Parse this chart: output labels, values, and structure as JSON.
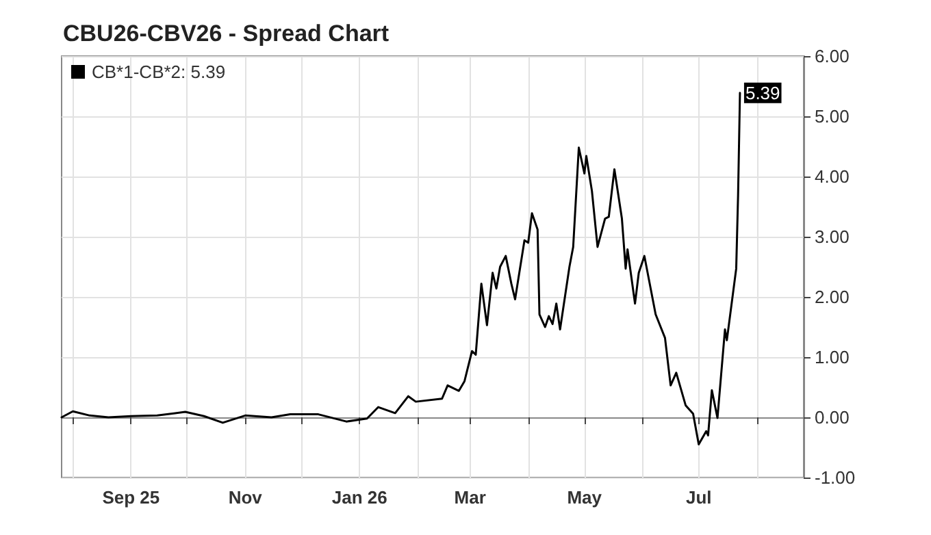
{
  "chart_data": {
    "type": "line",
    "title": "CBU26-CBV26 - Spread Chart",
    "x": [
      "2025-07-26",
      "2025-08-01",
      "2025-08-10",
      "2025-08-20",
      "2025-09-01",
      "2025-09-15",
      "2025-09-30",
      "2025-10-10",
      "2025-10-20",
      "2025-11-01",
      "2025-11-15",
      "2025-11-25",
      "2025-12-10",
      "2025-12-25",
      "2026-01-05",
      "2026-01-11",
      "2026-01-20",
      "2026-01-27",
      "2026-01-31",
      "2026-02-14",
      "2026-02-17",
      "2026-02-23",
      "2026-02-26",
      "2026-03-02",
      "2026-03-04",
      "2026-03-07",
      "2026-03-10",
      "2026-03-13",
      "2026-03-15",
      "2026-03-17",
      "2026-03-20",
      "2026-03-23",
      "2026-03-25",
      "2026-03-30",
      "2026-04-01",
      "2026-04-03",
      "2026-04-06",
      "2026-04-07",
      "2026-04-10",
      "2026-04-12",
      "2026-04-14",
      "2026-04-16",
      "2026-04-18",
      "2026-04-23",
      "2026-04-25",
      "2026-04-28",
      "2026-05-01",
      "2026-05-02",
      "2026-05-05",
      "2026-05-08",
      "2026-05-12",
      "2026-05-14",
      "2026-05-17",
      "2026-05-21",
      "2026-05-23",
      "2026-05-24",
      "2026-05-28",
      "2026-05-30",
      "2026-06-02",
      "2026-06-08",
      "2026-06-13",
      "2026-06-16",
      "2026-06-19",
      "2026-06-24",
      "2026-06-28",
      "2026-07-01",
      "2026-07-05",
      "2026-07-06",
      "2026-07-08",
      "2026-07-11",
      "2026-07-15",
      "2026-07-16",
      "2026-07-21",
      "2026-07-22",
      "2026-07-23"
    ],
    "series": [
      {
        "name": "CB*1-CB*2: 5.39",
        "color": "#000000",
        "values": [
          0.0,
          0.1,
          0.03,
          0.0,
          0.02,
          0.03,
          0.09,
          0.02,
          -0.09,
          0.03,
          0.0,
          0.05,
          0.05,
          -0.07,
          -0.02,
          0.17,
          0.07,
          0.35,
          0.26,
          0.31,
          0.53,
          0.44,
          0.6,
          1.1,
          1.04,
          2.22,
          1.53,
          2.4,
          2.14,
          2.5,
          2.68,
          2.22,
          1.96,
          2.94,
          2.9,
          3.39,
          3.12,
          1.71,
          1.5,
          1.68,
          1.55,
          1.89,
          1.46,
          2.5,
          2.83,
          4.48,
          4.05,
          4.34,
          3.76,
          2.83,
          3.3,
          3.33,
          4.12,
          3.3,
          2.47,
          2.79,
          1.89,
          2.4,
          2.68,
          1.71,
          1.32,
          0.53,
          0.74,
          0.2,
          0.06,
          -0.45,
          -0.23,
          -0.3,
          0.45,
          -0.01,
          1.46,
          1.28,
          2.47,
          3.69,
          5.39
        ],
        "value_labels": [
          null,
          null,
          null,
          null,
          null,
          null,
          null,
          null,
          null,
          null,
          null,
          null,
          null,
          null,
          null,
          null,
          null,
          null,
          null,
          null,
          null,
          null,
          null,
          null,
          null,
          null,
          null,
          null,
          null,
          null,
          null,
          null,
          null,
          null,
          null,
          null,
          null,
          null,
          null,
          null,
          null,
          null,
          null,
          null,
          null,
          null,
          null,
          null,
          null,
          null,
          null,
          null,
          null,
          null,
          null,
          null,
          null,
          null,
          null,
          null,
          null,
          null,
          null,
          null,
          null,
          null,
          null,
          null,
          null,
          null,
          null,
          null,
          null,
          null,
          "5.39"
        ]
      }
    ],
    "xlim": [
      "2025-07-26",
      "2026-08-26"
    ],
    "xticks": [
      {
        "value": "2025-08-01",
        "label": null
      },
      {
        "value": "2025-09-01",
        "label": "Sep 25"
      },
      {
        "value": "2025-10-01",
        "label": null
      },
      {
        "value": "2025-11-01",
        "label": "Nov"
      },
      {
        "value": "2025-12-01",
        "label": null
      },
      {
        "value": "2026-01-01",
        "label": "Jan 26"
      },
      {
        "value": "2026-02-01",
        "label": null
      },
      {
        "value": "2026-03-01",
        "label": "Mar"
      },
      {
        "value": "2026-04-01",
        "label": null
      },
      {
        "value": "2026-05-01",
        "label": "May"
      },
      {
        "value": "2026-06-01",
        "label": null
      },
      {
        "value": "2026-07-01",
        "label": "Jul"
      },
      {
        "value": "2026-08-01",
        "label": null
      }
    ],
    "ylim": [
      -1,
      6
    ],
    "yticks": [
      {
        "value": -1,
        "label": "-1.00"
      },
      {
        "value": 0,
        "label": "0.00"
      },
      {
        "value": 1,
        "label": "1.00"
      },
      {
        "value": 2,
        "label": "2.00"
      },
      {
        "value": 3,
        "label": "3.00"
      },
      {
        "value": 4,
        "label": "4.00"
      },
      {
        "value": 5,
        "label": "5.00"
      },
      {
        "value": 6,
        "label": "6.00"
      }
    ],
    "grid": true,
    "legend": "top left",
    "marker": "none",
    "line_style": "solid"
  }
}
